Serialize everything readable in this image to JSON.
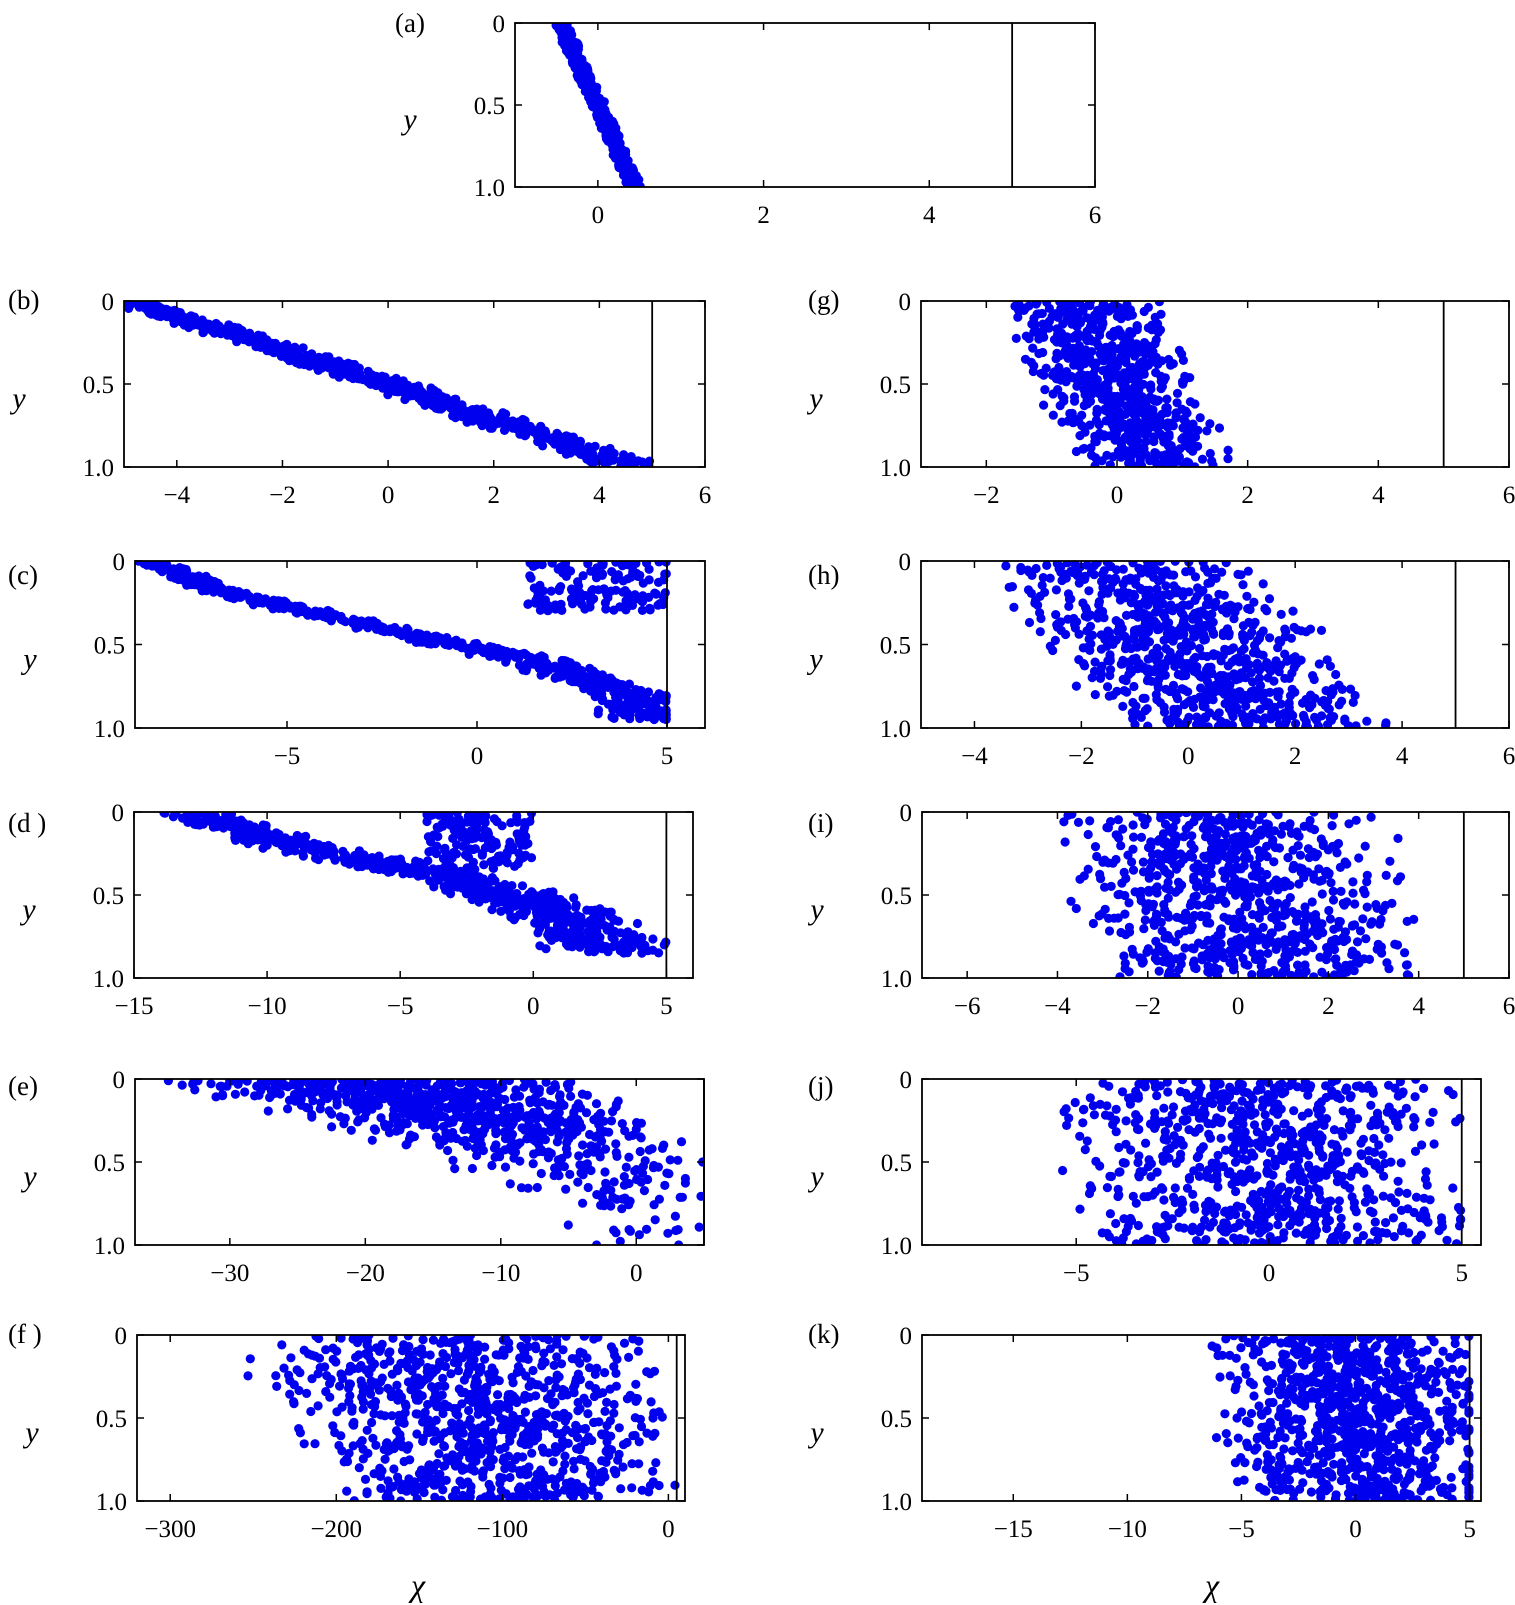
{
  "figure": {
    "x_axis_label": "χ",
    "marker_color": "#0000ee"
  },
  "chart_data": [
    {
      "type": "scatter",
      "panel": "a",
      "label": "(a)",
      "ylabel": "y",
      "xlabel": "",
      "xlim": [
        -1,
        6
      ],
      "ylim": [
        0,
        1
      ],
      "y_inverted": true,
      "xticks": [
        0,
        2,
        4,
        6
      ],
      "xtick_labels": [
        "0",
        "2",
        "4",
        "6"
      ],
      "yticks": [
        0,
        0.5,
        1
      ],
      "ytick_labels": [
        "0",
        "0.5",
        "1.0"
      ],
      "wall_x": 5,
      "cloud": {
        "n": 500,
        "y_dist": "uniform",
        "center": [
          [
            0,
            -0.45
          ],
          [
            1,
            0.45
          ]
        ],
        "half_width": [
          [
            0,
            0.1
          ],
          [
            1,
            0.1
          ]
        ],
        "x_min": -0.55,
        "x_max": 0.55
      }
    },
    {
      "type": "scatter",
      "panel": "b",
      "label": "(b)",
      "ylabel": "y",
      "xlabel": "",
      "xlim": [
        -5,
        6
      ],
      "ylim": [
        0,
        1
      ],
      "y_inverted": true,
      "xticks": [
        -4,
        -2,
        0,
        2,
        4,
        6
      ],
      "xtick_labels": [
        "−4",
        "−2",
        "0",
        "2",
        "4",
        "6"
      ],
      "yticks": [
        0,
        0.5,
        1
      ],
      "ytick_labels": [
        "0",
        "0.5",
        "1.0"
      ],
      "wall_x": 5,
      "cloud": {
        "n": 700,
        "y_dist": "uniform",
        "center": [
          [
            0,
            -4.9
          ],
          [
            0.5,
            0
          ],
          [
            1,
            4.6
          ]
        ],
        "half_width": [
          [
            0,
            0.5
          ],
          [
            1,
            0.75
          ]
        ],
        "x_min": -5,
        "x_max": 4.95
      }
    },
    {
      "type": "scatter",
      "panel": "c",
      "label": "(c)",
      "ylabel": "y",
      "xlabel": "",
      "xlim": [
        -9,
        6
      ],
      "ylim": [
        0,
        1
      ],
      "y_inverted": true,
      "xticks": [
        -5,
        0,
        5
      ],
      "xtick_labels": [
        "−5",
        "0",
        "5"
      ],
      "yticks": [
        0,
        0.5,
        1
      ],
      "ytick_labels": [
        "0",
        "0.5",
        "1.0"
      ],
      "wall_x": 5,
      "cloud": {
        "n": 600,
        "y_dist": "band",
        "y_range": [
          0,
          0.95
        ],
        "center": [
          [
            0,
            -8.6
          ],
          [
            0.2,
            -6.5
          ],
          [
            0.4,
            -2.5
          ],
          [
            0.6,
            1.5
          ],
          [
            0.8,
            4
          ],
          [
            0.95,
            4.5
          ]
        ],
        "half_width": [
          [
            0,
            0.5
          ],
          [
            1,
            1.3
          ]
        ],
        "x_min": -8.9,
        "x_max": 4.98
      },
      "cloud2": {
        "n": 150,
        "y_range": [
          0,
          0.3
        ],
        "x_range": [
          1.3,
          5
        ]
      }
    },
    {
      "type": "scatter",
      "panel": "d",
      "label": "(d )",
      "ylabel": "y",
      "xlabel": "",
      "xlim": [
        -15,
        6
      ],
      "ylim": [
        0,
        1
      ],
      "y_inverted": true,
      "xticks": [
        -15,
        -10,
        -5,
        0,
        5
      ],
      "xtick_labels": [
        "−15",
        "−10",
        "−5",
        "0",
        "5"
      ],
      "yticks": [
        0,
        0.5,
        1
      ],
      "ytick_labels": [
        "0",
        "0.5",
        "1.0"
      ],
      "wall_x": 5,
      "cloud": {
        "n": 700,
        "y_dist": "band",
        "y_range": [
          0,
          0.85
        ],
        "center": [
          [
            0,
            -13
          ],
          [
            0.2,
            -9
          ],
          [
            0.4,
            -3
          ],
          [
            0.6,
            1
          ],
          [
            0.85,
            3
          ]
        ],
        "half_width": [
          [
            0,
            1.5
          ],
          [
            1,
            3
          ]
        ],
        "x_min": -14.2,
        "x_max": 4.98
      },
      "cloud2": {
        "n": 150,
        "y_range": [
          0,
          0.35
        ],
        "x_range": [
          -4,
          0
        ]
      }
    },
    {
      "type": "scatter",
      "panel": "e",
      "label": "(e)",
      "ylabel": "y",
      "xlabel": "",
      "xlim": [
        -37,
        5
      ],
      "ylim": [
        0,
        1
      ],
      "y_inverted": true,
      "xticks": [
        -30,
        -20,
        -10,
        0
      ],
      "xtick_labels": [
        "−30",
        "−20",
        "−10",
        "0"
      ],
      "yticks": [
        0,
        0.5,
        1
      ],
      "ytick_labels": [
        "0",
        "0.5",
        "1.0"
      ],
      "wall_x": 5,
      "cloud": {
        "n": 800,
        "y_dist": "exp",
        "y_scale": 0.25,
        "y_range": [
          0,
          1
        ],
        "center": [
          [
            0,
            -20
          ],
          [
            0.3,
            -10
          ],
          [
            0.6,
            -2
          ],
          [
            1,
            0
          ]
        ],
        "half_width": [
          [
            0,
            17
          ],
          [
            0.5,
            11
          ],
          [
            1,
            5
          ]
        ],
        "x_min": -36,
        "x_max": 4.9
      }
    },
    {
      "type": "scatter",
      "panel": "f",
      "label": "(f )",
      "ylabel": "y",
      "xlabel": "χ",
      "xlim": [
        -320,
        10
      ],
      "ylim": [
        0,
        1
      ],
      "y_inverted": true,
      "xticks": [
        -300,
        -200,
        -100,
        0
      ],
      "xtick_labels": [
        "−300",
        "−200",
        "−100",
        "0"
      ],
      "yticks": [
        0,
        0.5,
        1
      ],
      "ytick_labels": [
        "0",
        "0.5",
        "1.0"
      ],
      "wall_x": 5,
      "cloud": {
        "n": 900,
        "y_dist": "uniform",
        "center": [
          [
            0,
            -130
          ],
          [
            1,
            -100
          ]
        ],
        "half_width": [
          [
            0,
            140
          ],
          [
            1,
            110
          ]
        ],
        "x_min": -295,
        "x_max": 4
      }
    },
    {
      "type": "scatter",
      "panel": "g",
      "label": "(g)",
      "ylabel": "y",
      "xlabel": "",
      "xlim": [
        -3,
        6
      ],
      "ylim": [
        0,
        1
      ],
      "y_inverted": true,
      "xticks": [
        -2,
        0,
        2,
        4,
        6
      ],
      "xtick_labels": [
        "−2",
        "0",
        "2",
        "4",
        "6"
      ],
      "yticks": [
        0,
        0.5,
        1
      ],
      "ytick_labels": [
        "0",
        "0.5",
        "1.0"
      ],
      "wall_x": 5,
      "cloud": {
        "n": 700,
        "y_dist": "uniform",
        "center": [
          [
            0,
            -0.6
          ],
          [
            1,
            0.6
          ]
        ],
        "half_width": [
          [
            0,
            1.3
          ],
          [
            1,
            1.3
          ]
        ],
        "x_min": -2.5,
        "x_max": 2.7
      }
    },
    {
      "type": "scatter",
      "panel": "h",
      "label": "(h)",
      "ylabel": "y",
      "xlabel": "",
      "xlim": [
        -5,
        6
      ],
      "ylim": [
        0,
        1
      ],
      "y_inverted": true,
      "xticks": [
        -4,
        -2,
        0,
        2,
        4,
        6
      ],
      "xtick_labels": [
        "−4",
        "−2",
        "0",
        "2",
        "4",
        "6"
      ],
      "yticks": [
        0,
        0.5,
        1
      ],
      "ytick_labels": [
        "0",
        "0.5",
        "1.0"
      ],
      "wall_x": 5,
      "cloud": {
        "n": 800,
        "y_dist": "uniform",
        "center": [
          [
            0,
            -1.3
          ],
          [
            1,
            1.2
          ]
        ],
        "half_width": [
          [
            0,
            2.8
          ],
          [
            1,
            2.8
          ]
        ],
        "x_min": -5,
        "x_max": 4.9
      }
    },
    {
      "type": "scatter",
      "panel": "i",
      "label": "(i)",
      "ylabel": "y",
      "xlabel": "",
      "xlim": [
        -7,
        6
      ],
      "ylim": [
        0,
        1
      ],
      "y_inverted": true,
      "xticks": [
        -6,
        -4,
        -2,
        0,
        2,
        4,
        6
      ],
      "xtick_labels": [
        "−6",
        "−4",
        "−2",
        "0",
        "2",
        "4",
        "6"
      ],
      "yticks": [
        0,
        0.5,
        1
      ],
      "ytick_labels": [
        "0",
        "0.5",
        "1.0"
      ],
      "wall_x": 5,
      "cloud": {
        "n": 800,
        "y_dist": "uniform",
        "center": [
          [
            0,
            -0.6
          ],
          [
            1,
            0.8
          ]
        ],
        "half_width": [
          [
            0,
            4
          ],
          [
            1,
            4
          ]
        ],
        "x_min": -6.5,
        "x_max": 4.97
      }
    },
    {
      "type": "scatter",
      "panel": "j",
      "label": "(j)",
      "ylabel": "y",
      "xlabel": "",
      "xlim": [
        -9,
        5.5
      ],
      "ylim": [
        0,
        1
      ],
      "y_inverted": true,
      "xticks": [
        -5,
        0,
        5
      ],
      "xtick_labels": [
        "−5",
        "0",
        "5"
      ],
      "yticks": [
        0,
        0.5,
        1
      ],
      "ytick_labels": [
        "0",
        "0.5",
        "1.0"
      ],
      "wall_x": 5,
      "cloud": {
        "n": 800,
        "y_dist": "uniform",
        "center": [
          [
            0,
            -0.5
          ],
          [
            1,
            0.5
          ]
        ],
        "half_width": [
          [
            0,
            5.5
          ],
          [
            1,
            5.5
          ]
        ],
        "x_min": -8.3,
        "x_max": 4.97
      }
    },
    {
      "type": "scatter",
      "panel": "k",
      "label": "(k)",
      "ylabel": "y",
      "xlabel": "χ",
      "xlim": [
        -19,
        5.5
      ],
      "ylim": [
        0,
        1
      ],
      "y_inverted": true,
      "xticks": [
        -15,
        -10,
        -5,
        0,
        5
      ],
      "xtick_labels": [
        "−15",
        "−10",
        "−5",
        "0",
        "5"
      ],
      "yticks": [
        0,
        0.5,
        1
      ],
      "ytick_labels": [
        "0",
        "0.5",
        "1.0"
      ],
      "wall_x": 5,
      "cloud": {
        "n": 900,
        "y_dist": "uniform",
        "center": [
          [
            0,
            -0.5
          ],
          [
            1,
            0.5
          ]
        ],
        "half_width": [
          [
            0,
            6.5
          ],
          [
            1,
            6.5
          ]
        ],
        "x_min": -17.5,
        "x_max": 4.97
      }
    }
  ]
}
